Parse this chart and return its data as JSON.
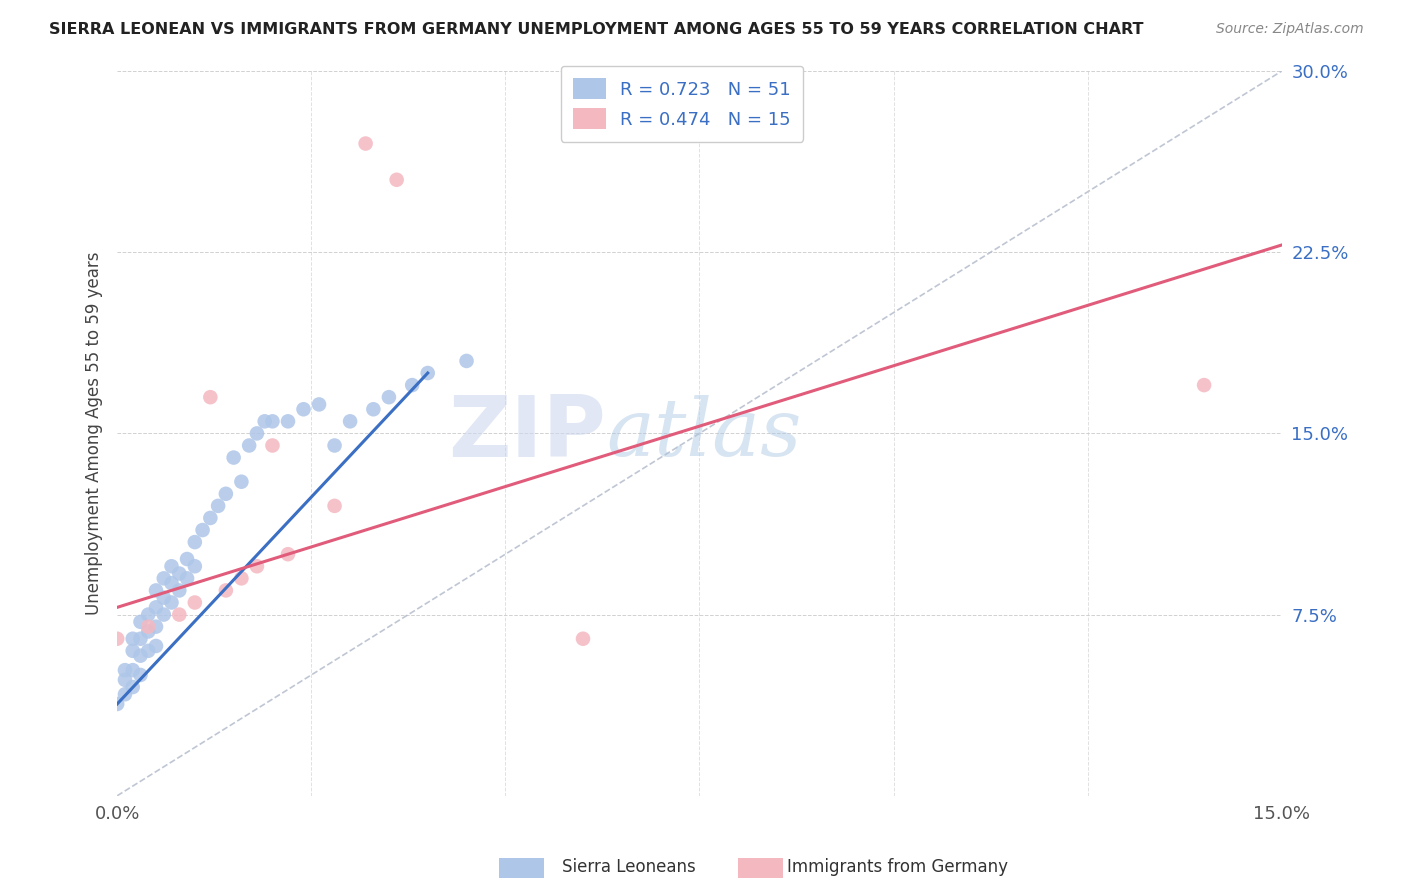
{
  "title": "SIERRA LEONEAN VS IMMIGRANTS FROM GERMANY UNEMPLOYMENT AMONG AGES 55 TO 59 YEARS CORRELATION CHART",
  "source": "Source: ZipAtlas.com",
  "ylabel": "Unemployment Among Ages 55 to 59 years",
  "xlim": [
    0.0,
    0.15
  ],
  "ylim": [
    0.0,
    0.3
  ],
  "ytick_positions": [
    0.0,
    0.075,
    0.15,
    0.225,
    0.3
  ],
  "ytick_labels": [
    "",
    "7.5%",
    "15.0%",
    "22.5%",
    "30.0%"
  ],
  "xtick_positions": [
    0.0,
    0.025,
    0.05,
    0.075,
    0.1,
    0.125,
    0.15
  ],
  "xtick_labels": [
    "0.0%",
    "",
    "",
    "",
    "",
    "",
    "15.0%"
  ],
  "sierra_R": 0.723,
  "sierra_N": 51,
  "germany_R": 0.474,
  "germany_N": 15,
  "sierra_color": "#aec6e8",
  "germany_color": "#f4b8c1",
  "sierra_line_color": "#3a6fc4",
  "germany_line_color": "#e05c7a",
  "diagonal_color": "#b0b8c8",
  "watermark_zip": "ZIP",
  "watermark_atlas": "atlas",
  "background_color": "#ffffff",
  "grid_color": "#cccccc",
  "sierra_x": [
    0.0,
    0.001,
    0.001,
    0.001,
    0.002,
    0.002,
    0.002,
    0.002,
    0.003,
    0.003,
    0.003,
    0.003,
    0.004,
    0.004,
    0.004,
    0.005,
    0.005,
    0.005,
    0.005,
    0.006,
    0.006,
    0.006,
    0.007,
    0.007,
    0.007,
    0.008,
    0.008,
    0.009,
    0.009,
    0.01,
    0.01,
    0.011,
    0.012,
    0.013,
    0.014,
    0.015,
    0.016,
    0.017,
    0.018,
    0.019,
    0.02,
    0.022,
    0.024,
    0.026,
    0.028,
    0.03,
    0.033,
    0.035,
    0.038,
    0.04,
    0.045
  ],
  "sierra_y": [
    0.038,
    0.042,
    0.048,
    0.052,
    0.045,
    0.052,
    0.06,
    0.065,
    0.05,
    0.058,
    0.065,
    0.072,
    0.06,
    0.068,
    0.075,
    0.062,
    0.07,
    0.078,
    0.085,
    0.075,
    0.082,
    0.09,
    0.08,
    0.088,
    0.095,
    0.085,
    0.092,
    0.09,
    0.098,
    0.095,
    0.105,
    0.11,
    0.115,
    0.12,
    0.125,
    0.14,
    0.13,
    0.145,
    0.15,
    0.155,
    0.155,
    0.155,
    0.16,
    0.162,
    0.145,
    0.155,
    0.16,
    0.165,
    0.17,
    0.175,
    0.18
  ],
  "germany_x": [
    0.0,
    0.004,
    0.008,
    0.01,
    0.012,
    0.014,
    0.016,
    0.018,
    0.02,
    0.022,
    0.028,
    0.032,
    0.036,
    0.06,
    0.14
  ],
  "germany_y": [
    0.065,
    0.07,
    0.075,
    0.08,
    0.165,
    0.085,
    0.09,
    0.095,
    0.145,
    0.1,
    0.12,
    0.27,
    0.255,
    0.065,
    0.17
  ],
  "sierra_line_x0": 0.0,
  "sierra_line_y0": 0.038,
  "sierra_line_x1": 0.04,
  "sierra_line_y1": 0.175,
  "germany_line_x0": 0.0,
  "germany_line_y0": 0.078,
  "germany_line_x1": 0.15,
  "germany_line_y1": 0.228
}
